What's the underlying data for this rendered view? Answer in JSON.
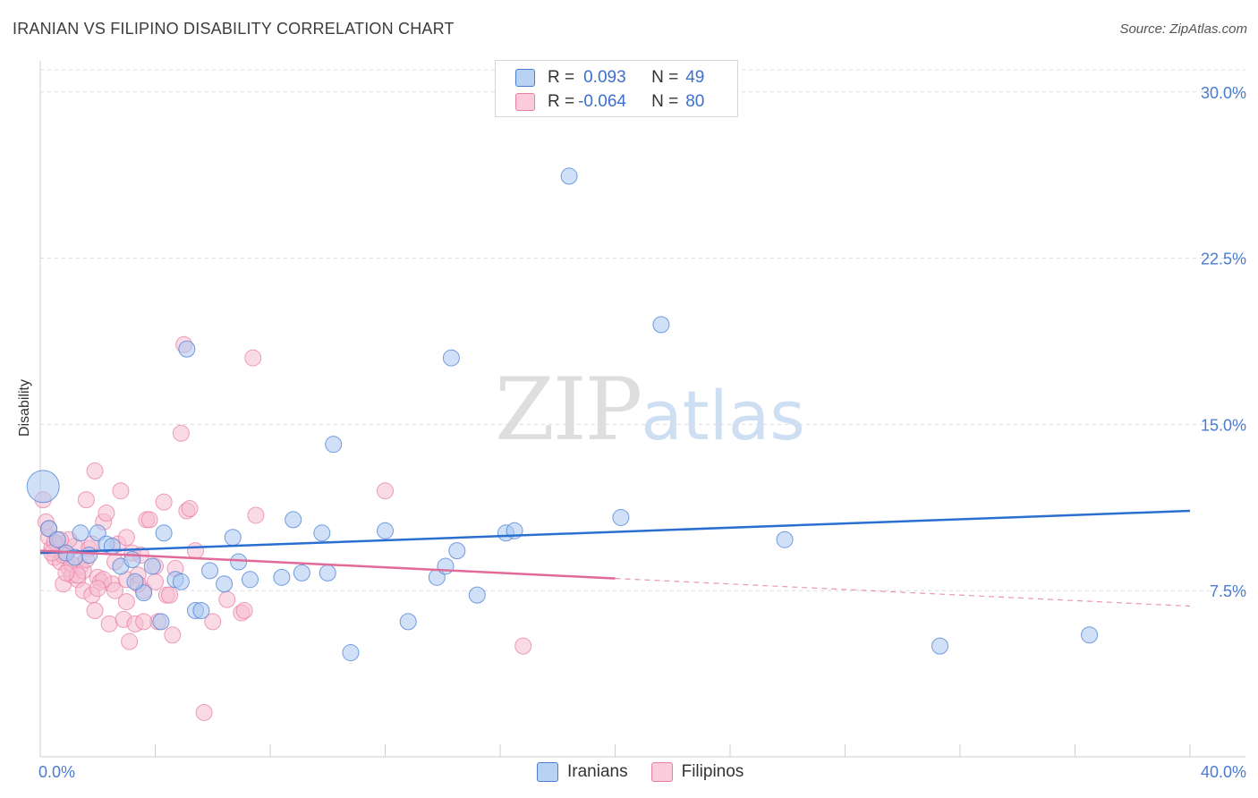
{
  "title": "IRANIAN VS FILIPINO DISABILITY CORRELATION CHART",
  "source": "Source: ZipAtlas.com",
  "watermark": {
    "zip": "ZIP",
    "atlas": "atlas"
  },
  "colors": {
    "iranians_fill": "#a9c6f0",
    "iranians_stroke": "#4a7fd4",
    "iranians_line": "#2a6fd0",
    "filipinos_fill": "#f6bcd0",
    "filipinos_stroke": "#e87fa4",
    "filipinos_line": "#e06a98",
    "grid": "#dcdcdc",
    "axis_text": "#4a7bd0"
  },
  "legend": {
    "rows": [
      {
        "r_label": "R =",
        "r_value": "0.093",
        "n_label": "N =",
        "n_value": "49"
      },
      {
        "r_label": "R =",
        "r_value": "-0.064",
        "n_label": "N =",
        "n_value": "80"
      }
    ],
    "bottom": [
      "Iranians",
      "Filipinos"
    ]
  },
  "chart_data": {
    "type": "scatter",
    "title": "IRANIAN VS FILIPINO DISABILITY CORRELATION CHART",
    "ylabel": "Disability",
    "xlabel": "",
    "xlim": [
      0,
      40
    ],
    "ylim": [
      0,
      31
    ],
    "y_ticks": [
      7.5,
      15.0,
      22.5,
      30.0
    ],
    "y_tick_labels": [
      "7.5%",
      "15.0%",
      "22.5%",
      "30.0%"
    ],
    "x_tick_labels": [
      "0.0%",
      "40.0%"
    ],
    "series": [
      {
        "name": "Iranians",
        "R": 0.093,
        "N": 49,
        "trend": {
          "x": [
            0,
            40
          ],
          "y": [
            9.2,
            11.1
          ],
          "dashed_from": null
        },
        "points": [
          [
            0.1,
            12.2
          ],
          [
            0.3,
            10.3
          ],
          [
            0.6,
            9.8
          ],
          [
            0.9,
            9.2
          ],
          [
            1.4,
            10.1
          ],
          [
            1.7,
            9.1
          ],
          [
            2.0,
            10.1
          ],
          [
            2.3,
            9.6
          ],
          [
            2.8,
            8.6
          ],
          [
            3.2,
            8.9
          ],
          [
            3.6,
            7.4
          ],
          [
            3.9,
            8.6
          ],
          [
            4.2,
            6.1
          ],
          [
            4.3,
            10.1
          ],
          [
            4.7,
            8.0
          ],
          [
            4.9,
            7.9
          ],
          [
            5.1,
            18.4
          ],
          [
            5.4,
            6.6
          ],
          [
            5.6,
            6.6
          ],
          [
            5.9,
            8.4
          ],
          [
            6.4,
            7.8
          ],
          [
            6.7,
            9.9
          ],
          [
            6.9,
            8.8
          ],
          [
            7.3,
            8.0
          ],
          [
            8.4,
            8.1
          ],
          [
            8.8,
            10.7
          ],
          [
            9.1,
            8.3
          ],
          [
            9.8,
            10.1
          ],
          [
            10.0,
            8.3
          ],
          [
            10.2,
            14.1
          ],
          [
            10.8,
            4.7
          ],
          [
            12.0,
            10.2
          ],
          [
            12.8,
            6.1
          ],
          [
            13.8,
            8.1
          ],
          [
            14.1,
            8.6
          ],
          [
            14.5,
            9.3
          ],
          [
            14.3,
            18.0
          ],
          [
            15.2,
            7.3
          ],
          [
            16.2,
            10.1
          ],
          [
            16.5,
            10.2
          ],
          [
            18.4,
            26.2
          ],
          [
            20.2,
            10.8
          ],
          [
            21.6,
            19.5
          ],
          [
            25.9,
            9.8
          ],
          [
            31.3,
            5.0
          ],
          [
            36.5,
            5.5
          ],
          [
            1.2,
            9.0
          ],
          [
            2.5,
            9.5
          ],
          [
            3.3,
            7.9
          ]
        ]
      },
      {
        "name": "Filipinos",
        "R": -0.064,
        "N": 80,
        "trend": {
          "x": [
            0,
            40
          ],
          "y": [
            9.3,
            6.8
          ],
          "solid_until": 20
        },
        "points": [
          [
            0.1,
            11.6
          ],
          [
            0.2,
            10.6
          ],
          [
            0.3,
            9.9
          ],
          [
            0.4,
            9.4
          ],
          [
            0.5,
            9.0
          ],
          [
            0.6,
            9.6
          ],
          [
            0.7,
            8.8
          ],
          [
            0.8,
            7.8
          ],
          [
            0.9,
            9.1
          ],
          [
            1.0,
            8.5
          ],
          [
            1.1,
            8.2
          ],
          [
            1.2,
            9.5
          ],
          [
            1.3,
            8.0
          ],
          [
            1.4,
            8.6
          ],
          [
            1.5,
            7.5
          ],
          [
            1.6,
            11.6
          ],
          [
            1.7,
            9.4
          ],
          [
            1.8,
            7.3
          ],
          [
            1.9,
            6.6
          ],
          [
            1.9,
            12.9
          ],
          [
            2.0,
            8.1
          ],
          [
            2.1,
            7.9
          ],
          [
            2.2,
            10.6
          ],
          [
            2.3,
            11.0
          ],
          [
            2.4,
            6.0
          ],
          [
            2.5,
            7.8
          ],
          [
            2.6,
            7.5
          ],
          [
            2.7,
            9.6
          ],
          [
            2.8,
            12.0
          ],
          [
            2.9,
            6.2
          ],
          [
            3.0,
            7.0
          ],
          [
            3.0,
            8.0
          ],
          [
            3.1,
            5.2
          ],
          [
            3.2,
            9.2
          ],
          [
            3.3,
            6.0
          ],
          [
            3.4,
            8.2
          ],
          [
            3.5,
            9.1
          ],
          [
            3.6,
            7.5
          ],
          [
            3.7,
            10.7
          ],
          [
            3.8,
            10.7
          ],
          [
            4.0,
            7.9
          ],
          [
            4.1,
            6.1
          ],
          [
            4.3,
            11.5
          ],
          [
            4.4,
            7.3
          ],
          [
            4.5,
            7.3
          ],
          [
            4.6,
            5.5
          ],
          [
            4.7,
            8.5
          ],
          [
            4.9,
            14.6
          ],
          [
            5.0,
            18.6
          ],
          [
            5.1,
            11.1
          ],
          [
            5.2,
            11.2
          ],
          [
            5.4,
            9.3
          ],
          [
            5.7,
            2.0
          ],
          [
            6.0,
            6.1
          ],
          [
            6.5,
            7.1
          ],
          [
            7.0,
            6.5
          ],
          [
            7.1,
            6.6
          ],
          [
            7.4,
            18.0
          ],
          [
            7.5,
            10.9
          ],
          [
            12.0,
            12.0
          ],
          [
            16.8,
            5.0
          ],
          [
            0.3,
            10.3
          ],
          [
            0.5,
            9.7
          ],
          [
            0.8,
            9.1
          ],
          [
            1.1,
            8.7
          ],
          [
            1.5,
            8.4
          ],
          [
            1.8,
            9.6
          ],
          [
            2.2,
            8.0
          ],
          [
            2.6,
            8.8
          ],
          [
            3.0,
            9.9
          ],
          [
            3.4,
            7.8
          ],
          [
            3.6,
            6.1
          ],
          [
            1.0,
            9.8
          ],
          [
            1.3,
            8.2
          ],
          [
            0.9,
            8.3
          ],
          [
            0.4,
            9.2
          ],
          [
            0.7,
            9.8
          ],
          [
            1.6,
            8.9
          ],
          [
            2.0,
            7.6
          ],
          [
            4.0,
            8.6
          ]
        ]
      }
    ]
  }
}
